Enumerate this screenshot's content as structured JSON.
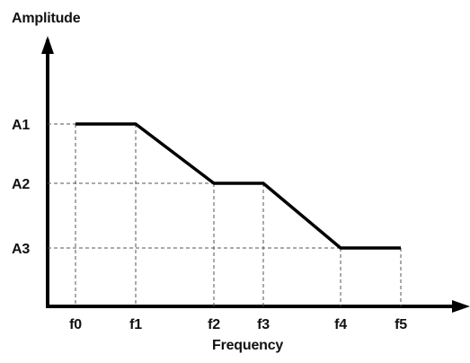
{
  "chart_data": {
    "type": "line",
    "title": "",
    "ylabel": "Amplitude",
    "xlabel": "Frequency",
    "x_categories": [
      "f0",
      "f1",
      "f2",
      "f3",
      "f4",
      "f5"
    ],
    "y_categories": [
      "A3",
      "A2",
      "A1"
    ],
    "series": [
      {
        "points": [
          {
            "x": "f0",
            "y": "A1"
          },
          {
            "x": "f1",
            "y": "A1"
          },
          {
            "x": "f2",
            "y": "A2"
          },
          {
            "x": "f3",
            "y": "A2"
          },
          {
            "x": "f4",
            "y": "A3"
          },
          {
            "x": "f5",
            "y": "A3"
          }
        ]
      }
    ],
    "grid": "dashed reference lines at each point",
    "line_color": "#000000"
  }
}
